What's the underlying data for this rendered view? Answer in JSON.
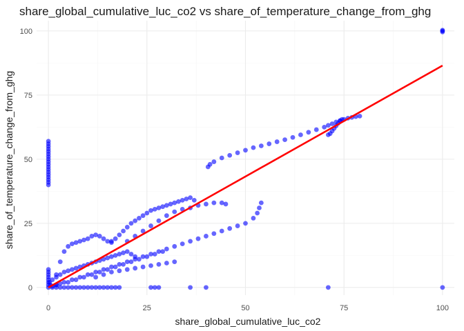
{
  "chart_data": {
    "type": "scatter",
    "title": "share_global_cumulative_luc_co2 vs share_of_temperature_change_from_ghg",
    "xlabel": "share_global_cumulative_luc_co2",
    "ylabel": "share_of_temperature_change_from_ghg",
    "xlim": [
      -3,
      103
    ],
    "ylim": [
      -3,
      104
    ],
    "x_ticks": [
      0,
      25,
      50,
      75,
      100
    ],
    "y_ticks": [
      0,
      25,
      50,
      75,
      100
    ],
    "x_tick_labels": [
      "0",
      "25",
      "50",
      "75",
      "100"
    ],
    "y_tick_labels": [
      "0",
      "25",
      "50",
      "75",
      "100"
    ],
    "grid": true,
    "legend": "none",
    "point_color": "#0000ff",
    "point_opacity": 0.6,
    "trend_color": "#ff0000",
    "series": [
      {
        "type": "scatter",
        "points": [
          [
            0,
            40
          ],
          [
            0,
            41
          ],
          [
            0,
            42
          ],
          [
            0,
            43
          ],
          [
            0,
            44
          ],
          [
            0,
            45
          ],
          [
            0,
            46
          ],
          [
            0,
            47
          ],
          [
            0,
            48
          ],
          [
            0,
            49
          ],
          [
            0,
            50
          ],
          [
            0,
            51
          ],
          [
            0,
            52
          ],
          [
            0,
            53
          ],
          [
            0,
            54
          ],
          [
            0,
            55
          ],
          [
            0,
            56
          ],
          [
            0,
            57
          ],
          [
            0,
            0
          ],
          [
            0,
            1
          ],
          [
            0,
            2
          ],
          [
            0,
            3
          ],
          [
            0,
            4
          ],
          [
            0,
            5
          ],
          [
            0,
            6
          ],
          [
            0,
            7
          ],
          [
            0.3,
            2
          ],
          [
            0.5,
            1
          ],
          [
            40.5,
            47
          ],
          [
            41,
            48
          ],
          [
            42,
            49
          ],
          [
            44,
            50.5
          ],
          [
            46,
            51.5
          ],
          [
            48,
            52.5
          ],
          [
            50,
            53.5
          ],
          [
            52,
            54.5
          ],
          [
            54,
            55.2
          ],
          [
            56,
            56
          ],
          [
            58,
            56.8
          ],
          [
            60,
            57.6
          ],
          [
            62,
            58.5
          ],
          [
            64,
            59.5
          ],
          [
            66,
            60.5
          ],
          [
            68,
            61.5
          ],
          [
            70,
            62.5
          ],
          [
            71,
            63.2
          ],
          [
            72,
            63.8
          ],
          [
            73,
            64.5
          ],
          [
            74,
            65
          ],
          [
            75,
            65.5
          ],
          [
            76,
            66
          ],
          [
            77,
            66.3
          ],
          [
            78,
            66.6
          ],
          [
            79,
            66.8
          ],
          [
            71,
            59.5
          ],
          [
            71.5,
            60
          ],
          [
            72,
            61
          ],
          [
            72.5,
            62
          ],
          [
            73,
            63
          ],
          [
            73.5,
            64
          ],
          [
            74,
            65
          ],
          [
            74.5,
            65.5
          ],
          [
            2,
            5
          ],
          [
            3,
            10
          ],
          [
            4,
            14
          ],
          [
            5,
            16
          ],
          [
            6,
            17
          ],
          [
            7,
            17.5
          ],
          [
            8,
            18
          ],
          [
            9,
            18.5
          ],
          [
            10,
            19
          ],
          [
            11,
            20
          ],
          [
            12,
            20.5
          ],
          [
            13,
            20
          ],
          [
            14,
            19
          ],
          [
            15,
            18
          ],
          [
            16,
            17.5
          ],
          [
            16,
            18
          ],
          [
            17,
            19
          ],
          [
            18,
            20.5
          ],
          [
            19,
            22
          ],
          [
            20,
            23.5
          ],
          [
            21,
            25
          ],
          [
            22,
            26
          ],
          [
            23,
            27
          ],
          [
            24,
            28
          ],
          [
            25,
            29
          ],
          [
            26,
            30
          ],
          [
            27,
            30.5
          ],
          [
            28,
            31
          ],
          [
            29,
            31.5
          ],
          [
            30,
            32
          ],
          [
            31,
            32.5
          ],
          [
            32,
            33
          ],
          [
            33,
            33.5
          ],
          [
            34,
            34
          ],
          [
            35,
            34.5
          ],
          [
            36,
            35
          ],
          [
            37,
            34
          ],
          [
            2,
            1
          ],
          [
            4,
            2
          ],
          [
            6,
            3
          ],
          [
            8,
            4
          ],
          [
            10,
            5
          ],
          [
            12,
            6
          ],
          [
            14,
            7
          ],
          [
            16,
            8
          ],
          [
            18,
            9
          ],
          [
            20,
            10
          ],
          [
            22,
            11
          ],
          [
            24,
            12
          ],
          [
            26,
            13
          ],
          [
            28,
            14
          ],
          [
            30,
            15
          ],
          [
            32,
            16
          ],
          [
            34,
            17
          ],
          [
            36,
            18
          ],
          [
            38,
            19
          ],
          [
            40,
            20
          ],
          [
            42,
            21
          ],
          [
            44,
            22
          ],
          [
            46,
            23
          ],
          [
            48,
            24
          ],
          [
            50,
            25
          ],
          [
            52,
            27
          ],
          [
            53,
            29
          ],
          [
            53.5,
            31
          ],
          [
            54,
            33
          ],
          [
            20,
            18
          ],
          [
            22,
            20
          ],
          [
            24,
            22
          ],
          [
            26,
            24
          ],
          [
            28,
            26
          ],
          [
            30,
            28
          ],
          [
            32,
            29.5
          ],
          [
            34,
            30.5
          ],
          [
            36,
            31
          ],
          [
            38,
            32
          ],
          [
            40,
            32.5
          ],
          [
            42,
            33
          ],
          [
            44,
            33
          ],
          [
            45,
            32.5
          ],
          [
            1,
            0.5
          ],
          [
            2,
            1
          ],
          [
            3,
            1.5
          ],
          [
            5,
            2
          ],
          [
            7,
            3
          ],
          [
            9,
            4
          ],
          [
            11,
            5
          ],
          [
            13,
            6
          ],
          [
            15,
            7
          ],
          [
            17,
            8
          ],
          [
            19,
            9
          ],
          [
            21,
            10
          ],
          [
            23,
            11
          ],
          [
            25,
            12
          ],
          [
            27,
            13
          ],
          [
            29,
            14
          ],
          [
            1,
            3
          ],
          [
            2,
            4
          ],
          [
            3,
            5
          ],
          [
            4,
            6
          ],
          [
            5,
            6.5
          ],
          [
            6,
            7
          ],
          [
            7,
            7.5
          ],
          [
            8,
            8
          ],
          [
            9,
            8.5
          ],
          [
            10,
            9
          ],
          [
            11,
            9.5
          ],
          [
            12,
            10
          ],
          [
            13,
            10.5
          ],
          [
            14,
            11
          ],
          [
            15,
            11.5
          ],
          [
            16,
            12
          ],
          [
            17,
            12.5
          ],
          [
            18,
            13
          ],
          [
            19,
            13.5
          ],
          [
            20,
            14
          ],
          [
            21,
            13
          ],
          [
            22,
            12
          ],
          [
            12,
            4
          ],
          [
            14,
            5
          ],
          [
            16,
            6
          ],
          [
            18,
            6.5
          ],
          [
            20,
            7
          ],
          [
            22,
            7.5
          ],
          [
            24,
            8
          ],
          [
            26,
            8.5
          ],
          [
            28,
            9
          ],
          [
            30,
            9.5
          ],
          [
            32,
            10
          ],
          [
            1,
            0
          ],
          [
            2,
            0
          ],
          [
            3,
            0
          ],
          [
            4,
            0
          ],
          [
            5,
            0
          ],
          [
            6,
            0
          ],
          [
            7,
            0
          ],
          [
            8,
            0
          ],
          [
            9,
            0
          ],
          [
            10,
            0
          ],
          [
            11,
            0
          ],
          [
            12,
            0
          ],
          [
            13,
            0
          ],
          [
            14,
            0
          ],
          [
            15,
            0
          ],
          [
            16,
            0
          ],
          [
            17,
            0
          ],
          [
            18,
            0
          ],
          [
            26,
            0
          ],
          [
            27,
            0
          ],
          [
            28,
            0
          ],
          [
            36,
            0
          ],
          [
            40,
            0
          ],
          [
            71,
            0
          ],
          [
            100,
            0
          ],
          [
            100,
            100
          ],
          [
            100,
            99.6
          ],
          [
            100,
            100.3
          ]
        ]
      },
      {
        "type": "line",
        "name": "",
        "points": [
          [
            0,
            0
          ],
          [
            100,
            86.5
          ]
        ]
      }
    ]
  }
}
